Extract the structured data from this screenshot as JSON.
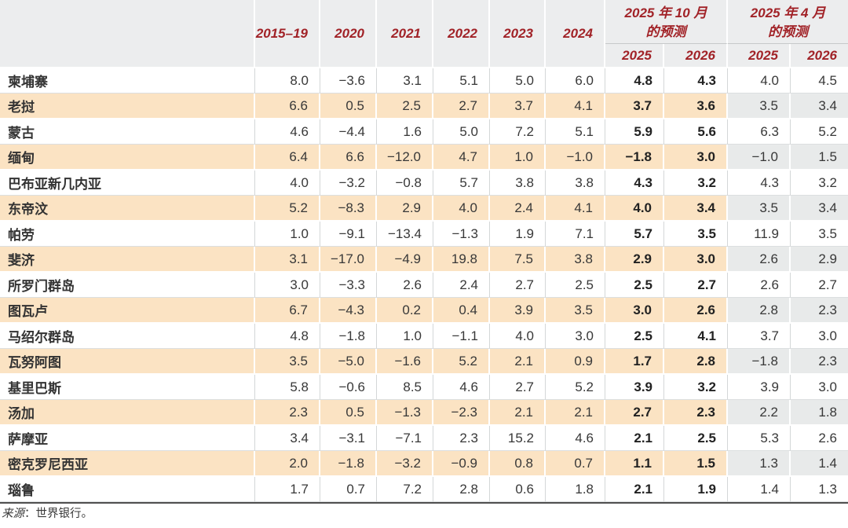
{
  "chart_data": {
    "type": "table",
    "year_columns": [
      "2015–19",
      "2020",
      "2021",
      "2022",
      "2023",
      "2024"
    ],
    "forecast_groups": [
      {
        "title_line1": "2025 年 10 月",
        "title_line2": "的预测",
        "subcolumns": [
          "2025",
          "2026"
        ]
      },
      {
        "title_line1": "2025 年 4 月",
        "title_line2": "的预测",
        "subcolumns": [
          "2025",
          "2026"
        ]
      }
    ],
    "value_columns_order": [
      "2015–19",
      "2020",
      "2021",
      "2022",
      "2023",
      "2024",
      "2025年10月的预测 2025",
      "2025年10月的预测 2026",
      "2025年4月的预测 2025",
      "2025年4月的预测 2026"
    ],
    "rows": [
      {
        "name": "柬埔寨",
        "values": [
          "8.0",
          "−3.6",
          "3.1",
          "5.1",
          "5.0",
          "6.0",
          "4.8",
          "4.3",
          "4.0",
          "4.5"
        ]
      },
      {
        "name": "老挝",
        "values": [
          "6.6",
          "0.5",
          "2.5",
          "2.7",
          "3.7",
          "4.1",
          "3.7",
          "3.6",
          "3.5",
          "3.4"
        ]
      },
      {
        "name": "蒙古",
        "values": [
          "4.6",
          "−4.4",
          "1.6",
          "5.0",
          "7.2",
          "5.1",
          "5.9",
          "5.6",
          "6.3",
          "5.2"
        ]
      },
      {
        "name": "缅甸",
        "values": [
          "6.4",
          "6.6",
          "−12.0",
          "4.7",
          "1.0",
          "−1.0",
          "−1.8",
          "3.0",
          "−1.0",
          "1.5"
        ]
      },
      {
        "name": "巴布亚新几内亚",
        "values": [
          "4.0",
          "−3.2",
          "−0.8",
          "5.7",
          "3.8",
          "3.8",
          "4.3",
          "3.2",
          "4.3",
          "3.2"
        ]
      },
      {
        "name": "东帝汶",
        "values": [
          "5.2",
          "−8.3",
          "2.9",
          "4.0",
          "2.4",
          "4.1",
          "4.0",
          "3.4",
          "3.5",
          "3.4"
        ]
      },
      {
        "name": "帕劳",
        "values": [
          "1.0",
          "−9.1",
          "−13.4",
          "−1.3",
          "1.9",
          "7.1",
          "5.7",
          "3.5",
          "11.9",
          "3.5"
        ]
      },
      {
        "name": "斐济",
        "values": [
          "3.1",
          "−17.0",
          "−4.9",
          "19.8",
          "7.5",
          "3.8",
          "2.9",
          "3.0",
          "2.6",
          "2.9"
        ]
      },
      {
        "name": "所罗门群岛",
        "values": [
          "3.0",
          "−3.3",
          "2.6",
          "2.4",
          "2.7",
          "2.5",
          "2.5",
          "2.7",
          "2.6",
          "2.7"
        ]
      },
      {
        "name": "图瓦卢",
        "values": [
          "6.7",
          "−4.3",
          "0.2",
          "0.4",
          "3.9",
          "3.5",
          "3.0",
          "2.6",
          "2.8",
          "2.3"
        ]
      },
      {
        "name": "马绍尔群岛",
        "values": [
          "4.8",
          "−1.8",
          "1.0",
          "−1.1",
          "4.0",
          "3.0",
          "2.5",
          "4.1",
          "3.7",
          "3.0"
        ]
      },
      {
        "name": "瓦努阿图",
        "values": [
          "3.5",
          "−5.0",
          "−1.6",
          "5.2",
          "2.1",
          "0.9",
          "1.7",
          "2.8",
          "−1.8",
          "2.3"
        ]
      },
      {
        "name": "基里巴斯",
        "values": [
          "5.8",
          "−0.6",
          "8.5",
          "4.6",
          "2.7",
          "5.2",
          "3.9",
          "3.2",
          "3.9",
          "3.0"
        ]
      },
      {
        "name": "汤加",
        "values": [
          "2.3",
          "0.5",
          "−1.3",
          "−2.3",
          "2.1",
          "2.1",
          "2.7",
          "2.3",
          "2.2",
          "1.8"
        ]
      },
      {
        "name": "萨摩亚",
        "values": [
          "3.4",
          "−3.1",
          "−7.1",
          "2.3",
          "15.2",
          "4.6",
          "2.1",
          "2.5",
          "5.3",
          "2.6"
        ]
      },
      {
        "name": "密克罗尼西亚",
        "values": [
          "2.0",
          "−1.8",
          "−3.2",
          "−0.9",
          "0.8",
          "0.7",
          "1.1",
          "1.5",
          "1.3",
          "1.4"
        ]
      },
      {
        "name": "瑙鲁",
        "values": [
          "1.7",
          "0.7",
          "7.2",
          "2.8",
          "0.6",
          "1.8",
          "2.1",
          "1.9",
          "1.4",
          "1.3"
        ]
      }
    ]
  },
  "footer": {
    "source_label": "来源",
    "source_rest": "：世界银行。"
  },
  "colors": {
    "header_text_red": "#a12227",
    "header_bg": "#ecedee",
    "row_highlight_peach": "#fbe3c3",
    "april_alt_gray": "#e8eaea",
    "table_bottom_border": "#4f4f4f"
  }
}
